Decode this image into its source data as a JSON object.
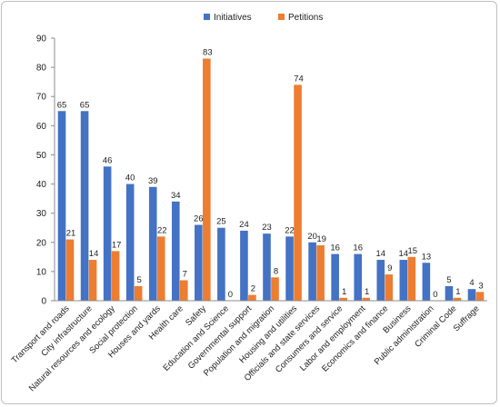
{
  "chart_data": {
    "type": "bar",
    "categories": [
      "Transport and roads",
      "City infrastructure",
      "Natural resources and ecology",
      "Social protection",
      "Houses and yards",
      "Health care",
      "Safety",
      "Education and Science",
      "Governmental support",
      "Population and migration",
      "Housing and utilities",
      "Officials and state services",
      "Consumers and service",
      "Labor and employment",
      "Economics and finance",
      "Business",
      "Public administration",
      "Criminal Code",
      "Suffrage"
    ],
    "series": [
      {
        "name": "Initiatives",
        "color": "#4472C4",
        "values": [
          65,
          65,
          46,
          40,
          39,
          34,
          26,
          25,
          24,
          23,
          22,
          20,
          16,
          16,
          14,
          14,
          13,
          5,
          4
        ]
      },
      {
        "name": "Petitions",
        "color": "#ED7D31",
        "values": [
          21,
          14,
          17,
          5,
          22,
          7,
          83,
          0,
          2,
          8,
          74,
          19,
          1,
          1,
          9,
          15,
          0,
          1,
          3
        ]
      }
    ],
    "ylim": [
      0,
      90
    ],
    "yticks": [
      0,
      10,
      20,
      30,
      40,
      50,
      60,
      70,
      80,
      90
    ],
    "legend": "top-center",
    "grid": false,
    "data_labels": true
  }
}
